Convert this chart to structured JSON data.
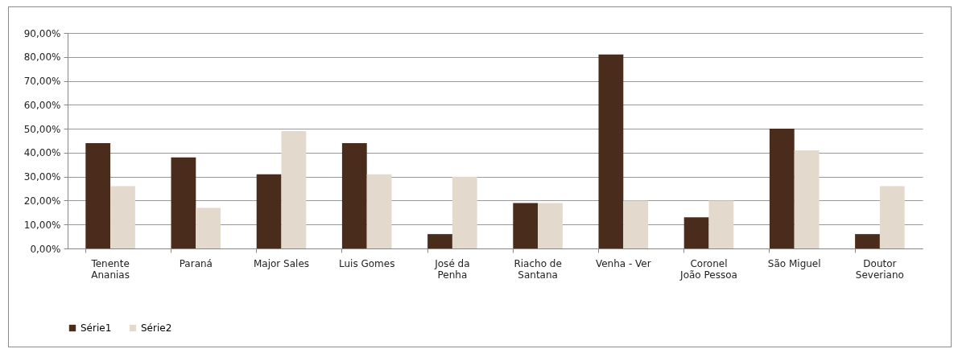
{
  "chart_data": {
    "type": "bar",
    "categories": [
      "Tenente Ananias",
      "Paraná",
      "Major Sales",
      "Luis Gomes",
      "José da Penha",
      "Riacho de Santana",
      "Venha - Ver",
      "Coronel João Pessoa",
      "São Miguel",
      "Doutor Severiano"
    ],
    "series": [
      {
        "name": "Série1",
        "color": "#4a2c1c",
        "values": [
          44,
          38,
          31,
          44,
          6,
          19,
          81,
          13,
          50,
          6
        ]
      },
      {
        "name": "Série2",
        "color": "#e3dacd",
        "values": [
          26,
          17,
          49,
          31,
          30,
          19,
          20,
          20,
          41,
          26
        ]
      }
    ],
    "ylim": [
      0,
      90
    ],
    "yticks": [
      {
        "value": 0,
        "label": "0,00%"
      },
      {
        "value": 10,
        "label": "10,00%"
      },
      {
        "value": 20,
        "label": "20,00%"
      },
      {
        "value": 30,
        "label": "30,00%"
      },
      {
        "value": 40,
        "label": "40,00%"
      },
      {
        "value": 50,
        "label": "50,00%"
      },
      {
        "value": 60,
        "label": "60,00%"
      },
      {
        "value": 70,
        "label": "70,00%"
      },
      {
        "value": 80,
        "label": "80,00%"
      },
      {
        "value": 90,
        "label": "90,00%"
      }
    ],
    "grid": "y",
    "legend": "bottom"
  }
}
